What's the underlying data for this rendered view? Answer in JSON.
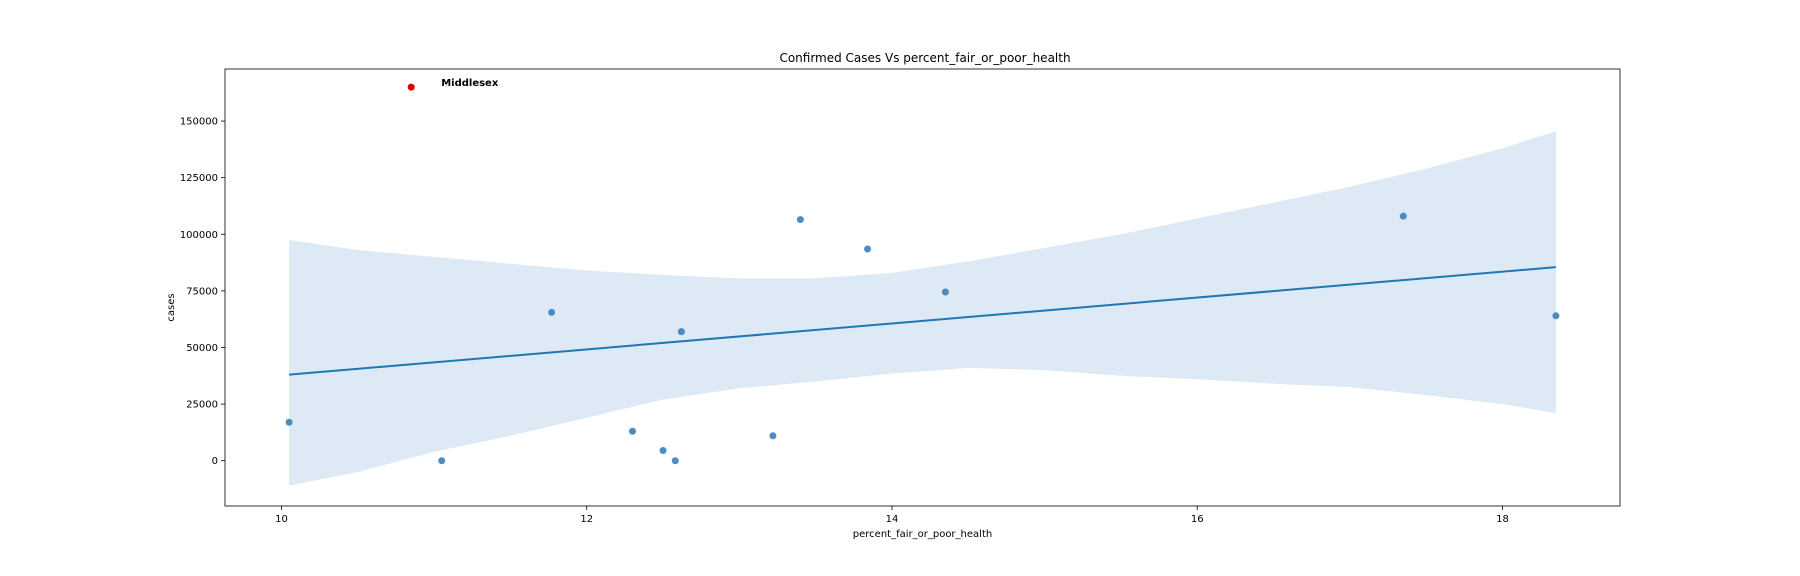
{
  "chart_data": {
    "type": "scatter",
    "title": "Confirmed Cases Vs percent_fair_or_poor_health",
    "xlabel": "percent_fair_or_poor_health",
    "ylabel": "cases",
    "xlim": [
      9.63,
      18.77
    ],
    "ylim": [
      -20000,
      173000
    ],
    "xticks": [
      10,
      12,
      14,
      16,
      18
    ],
    "yticks": [
      0,
      25000,
      50000,
      75000,
      100000,
      125000,
      150000
    ],
    "grid": false,
    "legend": "none",
    "colors": {
      "points": "#3a7fba",
      "highlight": "#dd0000",
      "regression_line": "#1f77b4",
      "confidence_band": "#c6dbef"
    },
    "points": [
      {
        "x": 10.05,
        "y": 17000
      },
      {
        "x": 11.05,
        "y": 0
      },
      {
        "x": 11.77,
        "y": 65500
      },
      {
        "x": 12.3,
        "y": 13000
      },
      {
        "x": 12.5,
        "y": 4500
      },
      {
        "x": 12.58,
        "y": 0
      },
      {
        "x": 12.62,
        "y": 57000
      },
      {
        "x": 13.22,
        "y": 11000
      },
      {
        "x": 13.4,
        "y": 106500
      },
      {
        "x": 13.84,
        "y": 93500
      },
      {
        "x": 14.35,
        "y": 74500
      },
      {
        "x": 17.35,
        "y": 108000
      },
      {
        "x": 18.35,
        "y": 64000
      }
    ],
    "regression": {
      "x": [
        10.05,
        18.35
      ],
      "y": [
        38000,
        85500
      ]
    },
    "confidence_band": {
      "x": [
        10.05,
        10.5,
        11.0,
        11.5,
        12.0,
        12.5,
        13.0,
        13.5,
        14.0,
        14.5,
        15.0,
        15.5,
        16.0,
        16.5,
        17.0,
        17.5,
        18.0,
        18.35
      ],
      "upper": [
        97500,
        93000,
        90000,
        87000,
        84000,
        82000,
        80500,
        80500,
        83000,
        88000,
        94000,
        100000,
        107000,
        114000,
        121000,
        129000,
        138000,
        145500
      ],
      "lower": [
        -11000,
        -5000,
        4000,
        11000,
        19000,
        27000,
        32000,
        35000,
        38500,
        41000,
        40000,
        37500,
        36000,
        34000,
        32500,
        29000,
        25000,
        21000
      ]
    },
    "annotation": {
      "label": "Middlesex",
      "x": 10.85,
      "y": 165000
    }
  }
}
